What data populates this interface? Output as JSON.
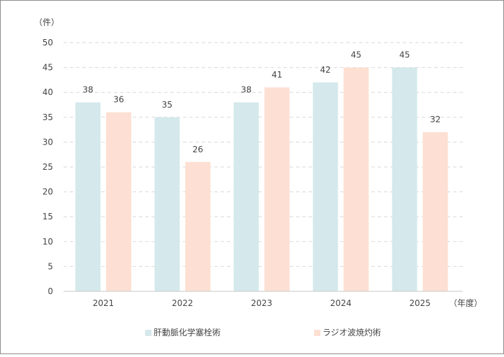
{
  "chart_data": {
    "type": "bar",
    "title": "",
    "y_unit": "（件）",
    "x_unit": "（年度）",
    "categories": [
      "2021",
      "2022",
      "2023",
      "2024",
      "2025"
    ],
    "series": [
      {
        "name": "肝動脈化学塞栓術",
        "color": "#d5e9ec",
        "values": [
          38,
          35,
          38,
          42,
          45
        ]
      },
      {
        "name": "ラジオ波焼灼術",
        "color": "#fde0d3",
        "values": [
          36,
          26,
          41,
          45,
          32
        ]
      }
    ],
    "ylim": [
      0,
      50
    ],
    "yticks": [
      "0",
      "5",
      "10",
      "15",
      "20",
      "25",
      "30",
      "35",
      "40",
      "45",
      "50"
    ],
    "grid": true,
    "legend": "bottom"
  }
}
